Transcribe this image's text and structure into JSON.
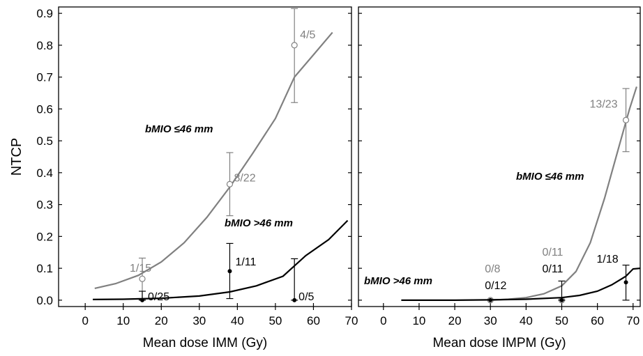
{
  "chart_data": [
    {
      "type": "line",
      "ylabel": "NTCP",
      "xlabel": "Mean dose IMM (Gy)",
      "xlim": [
        -7,
        70
      ],
      "ylim": [
        -0.02,
        0.92
      ],
      "xticks": [
        0,
        10,
        20,
        30,
        40,
        50,
        60,
        70
      ],
      "yticks": [
        0.0,
        0.1,
        0.2,
        0.3,
        0.4,
        0.5,
        0.6,
        0.7,
        0.8,
        0.9
      ],
      "ytick_labels": [
        "0.0",
        "0.1",
        "0.2",
        "0.3",
        "0.4",
        "0.5",
        "0.6",
        "0.7",
        "0.8",
        "0.9"
      ],
      "grid": false,
      "series": [
        {
          "name": "bMIO ≤46 mm",
          "color": "#808080",
          "curve": [
            [
              2.5,
              0.037
            ],
            [
              8,
              0.052
            ],
            [
              14,
              0.078
            ],
            [
              20,
              0.12
            ],
            [
              26,
              0.18
            ],
            [
              32,
              0.26
            ],
            [
              38,
              0.355
            ],
            [
              44,
              0.46
            ],
            [
              50,
              0.57
            ],
            [
              55,
              0.7
            ],
            [
              60,
              0.77
            ],
            [
              65,
              0.84
            ]
          ],
          "points": [
            {
              "x": 15,
              "y": 0.067,
              "err_low": 0.0,
              "err_high": 0.132,
              "label": "1/15"
            },
            {
              "x": 38,
              "y": 0.364,
              "err_low": 0.265,
              "err_high": 0.463,
              "label": "8/22"
            },
            {
              "x": 55,
              "y": 0.8,
              "err_low": 0.62,
              "err_high": 0.915,
              "label": "4/5"
            }
          ],
          "marker": "open-circle"
        },
        {
          "name": "bMIO >46 mm",
          "color": "#000000",
          "curve": [
            [
              2,
              0.002
            ],
            [
              10,
              0.003
            ],
            [
              20,
              0.006
            ],
            [
              30,
              0.013
            ],
            [
              38,
              0.026
            ],
            [
              45,
              0.045
            ],
            [
              52,
              0.075
            ],
            [
              58,
              0.14
            ],
            [
              64,
              0.19
            ],
            [
              69,
              0.25
            ]
          ],
          "points": [
            {
              "x": 15,
              "y": 0.0,
              "err_low": 0.0,
              "err_high": 0.028,
              "label": "0/25"
            },
            {
              "x": 38,
              "y": 0.091,
              "err_low": 0.005,
              "err_high": 0.178,
              "label": "1/11"
            },
            {
              "x": 55,
              "y": 0.0,
              "err_low": 0.0,
              "err_high": 0.13,
              "label": "0/5"
            }
          ],
          "marker": "filled-circle"
        }
      ],
      "annotations": [
        "bMIO ≤46 mm",
        "bMIO >46 mm"
      ]
    },
    {
      "type": "line",
      "ylabel": "",
      "xlabel": "Mean dose IMPM (Gy)",
      "xlim": [
        -7,
        72
      ],
      "ylim": [
        -0.02,
        0.92
      ],
      "xticks": [
        0,
        10,
        20,
        30,
        40,
        50,
        60,
        70
      ],
      "yticks": [
        0.0,
        0.1,
        0.2,
        0.3,
        0.4,
        0.5,
        0.6,
        0.7,
        0.8,
        0.9
      ],
      "grid": false,
      "series": [
        {
          "name": "bMIO ≤46 mm",
          "color": "#808080",
          "curve": [
            [
              30,
              0.0
            ],
            [
              35,
              0.003
            ],
            [
              40,
              0.008
            ],
            [
              45,
              0.02
            ],
            [
              50,
              0.045
            ],
            [
              54,
              0.09
            ],
            [
              58,
              0.18
            ],
            [
              62,
              0.32
            ],
            [
              66,
              0.48
            ],
            [
              69,
              0.6
            ],
            [
              71,
              0.67
            ]
          ],
          "points": [
            {
              "x": 30,
              "y": 0.0,
              "err_low": 0.0,
              "err_high": 0.0,
              "label": "0/8"
            },
            {
              "x": 50,
              "y": 0.0,
              "err_low": 0.0,
              "err_high": 0.0,
              "label": "0/11"
            },
            {
              "x": 68,
              "y": 0.565,
              "err_low": 0.466,
              "err_high": 0.664,
              "label": "13/23"
            }
          ],
          "marker": "open-circle"
        },
        {
          "name": "bMIO >46 mm",
          "color": "#000000",
          "curve": [
            [
              5,
              0.0
            ],
            [
              20,
              0.0
            ],
            [
              30,
              0.001
            ],
            [
              40,
              0.003
            ],
            [
              50,
              0.008
            ],
            [
              55,
              0.015
            ],
            [
              60,
              0.028
            ],
            [
              64,
              0.048
            ],
            [
              68,
              0.075
            ],
            [
              70,
              0.098
            ],
            [
              72,
              0.1
            ]
          ],
          "points": [
            {
              "x": 30,
              "y": 0.0,
              "err_low": 0.0,
              "err_high": 0.0,
              "label": "0/12"
            },
            {
              "x": 50,
              "y": 0.0,
              "err_low": 0.0,
              "err_high": 0.06,
              "label": "0/11"
            },
            {
              "x": 68,
              "y": 0.056,
              "err_low": 0.0,
              "err_high": 0.11,
              "label": "1/18"
            }
          ],
          "marker": "filled-circle"
        }
      ],
      "annotations": [
        "bMIO ≤46 mm",
        "bMIO >46 mm"
      ]
    }
  ]
}
